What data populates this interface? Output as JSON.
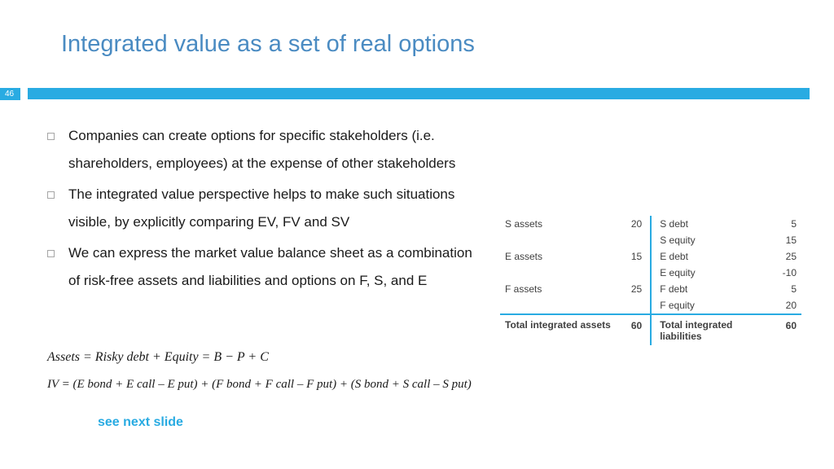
{
  "title": "Integrated value as a set of real options",
  "pageNumber": "46",
  "bullets": [
    "Companies can create options for specific stakeholders (i.e. shareholders, employees) at the expense of other stakeholders",
    "The integrated value perspective helps to make such situations visible, by explicitly comparing EV, FV and SV",
    "We can express the market value balance sheet as a combination of risk-free assets and liabilities and options on F, S, and E"
  ],
  "equations": {
    "eq1": "Assets = Risky debt + Equity = B − P + C",
    "eq2": "IV = (E bond + E call – E put) + (F bond + F call – F put) + (S bond + S call – S put)"
  },
  "seeNext": "see next slide",
  "balanceSheet": {
    "rows": [
      {
        "l": "S assets",
        "lv": "20",
        "r": "S debt",
        "rv": "5"
      },
      {
        "l": "",
        "lv": "",
        "r": "S equity",
        "rv": "15"
      },
      {
        "l": "E assets",
        "lv": "15",
        "r": "E debt",
        "rv": "25"
      },
      {
        "l": "",
        "lv": "",
        "r": "E equity",
        "rv": "-10"
      },
      {
        "l": "F assets",
        "lv": "25",
        "r": "F debt",
        "rv": "5"
      },
      {
        "l": "",
        "lv": "",
        "r": "F equity",
        "rv": "20"
      }
    ],
    "total": {
      "l": "Total integrated assets",
      "lv": "60",
      "r": "Total integrated liabilities",
      "rv": "60"
    }
  },
  "colors": {
    "accent": "#29abe2",
    "titleColor": "#4a8bc2",
    "bodyText": "#1a1a1a",
    "tableText": "#404040",
    "bulletBorder": "#a6a6a6",
    "background": "#ffffff"
  },
  "typography": {
    "titleSize": 29,
    "bodySize": 17,
    "tableSize": 12,
    "eqSize": 16
  }
}
